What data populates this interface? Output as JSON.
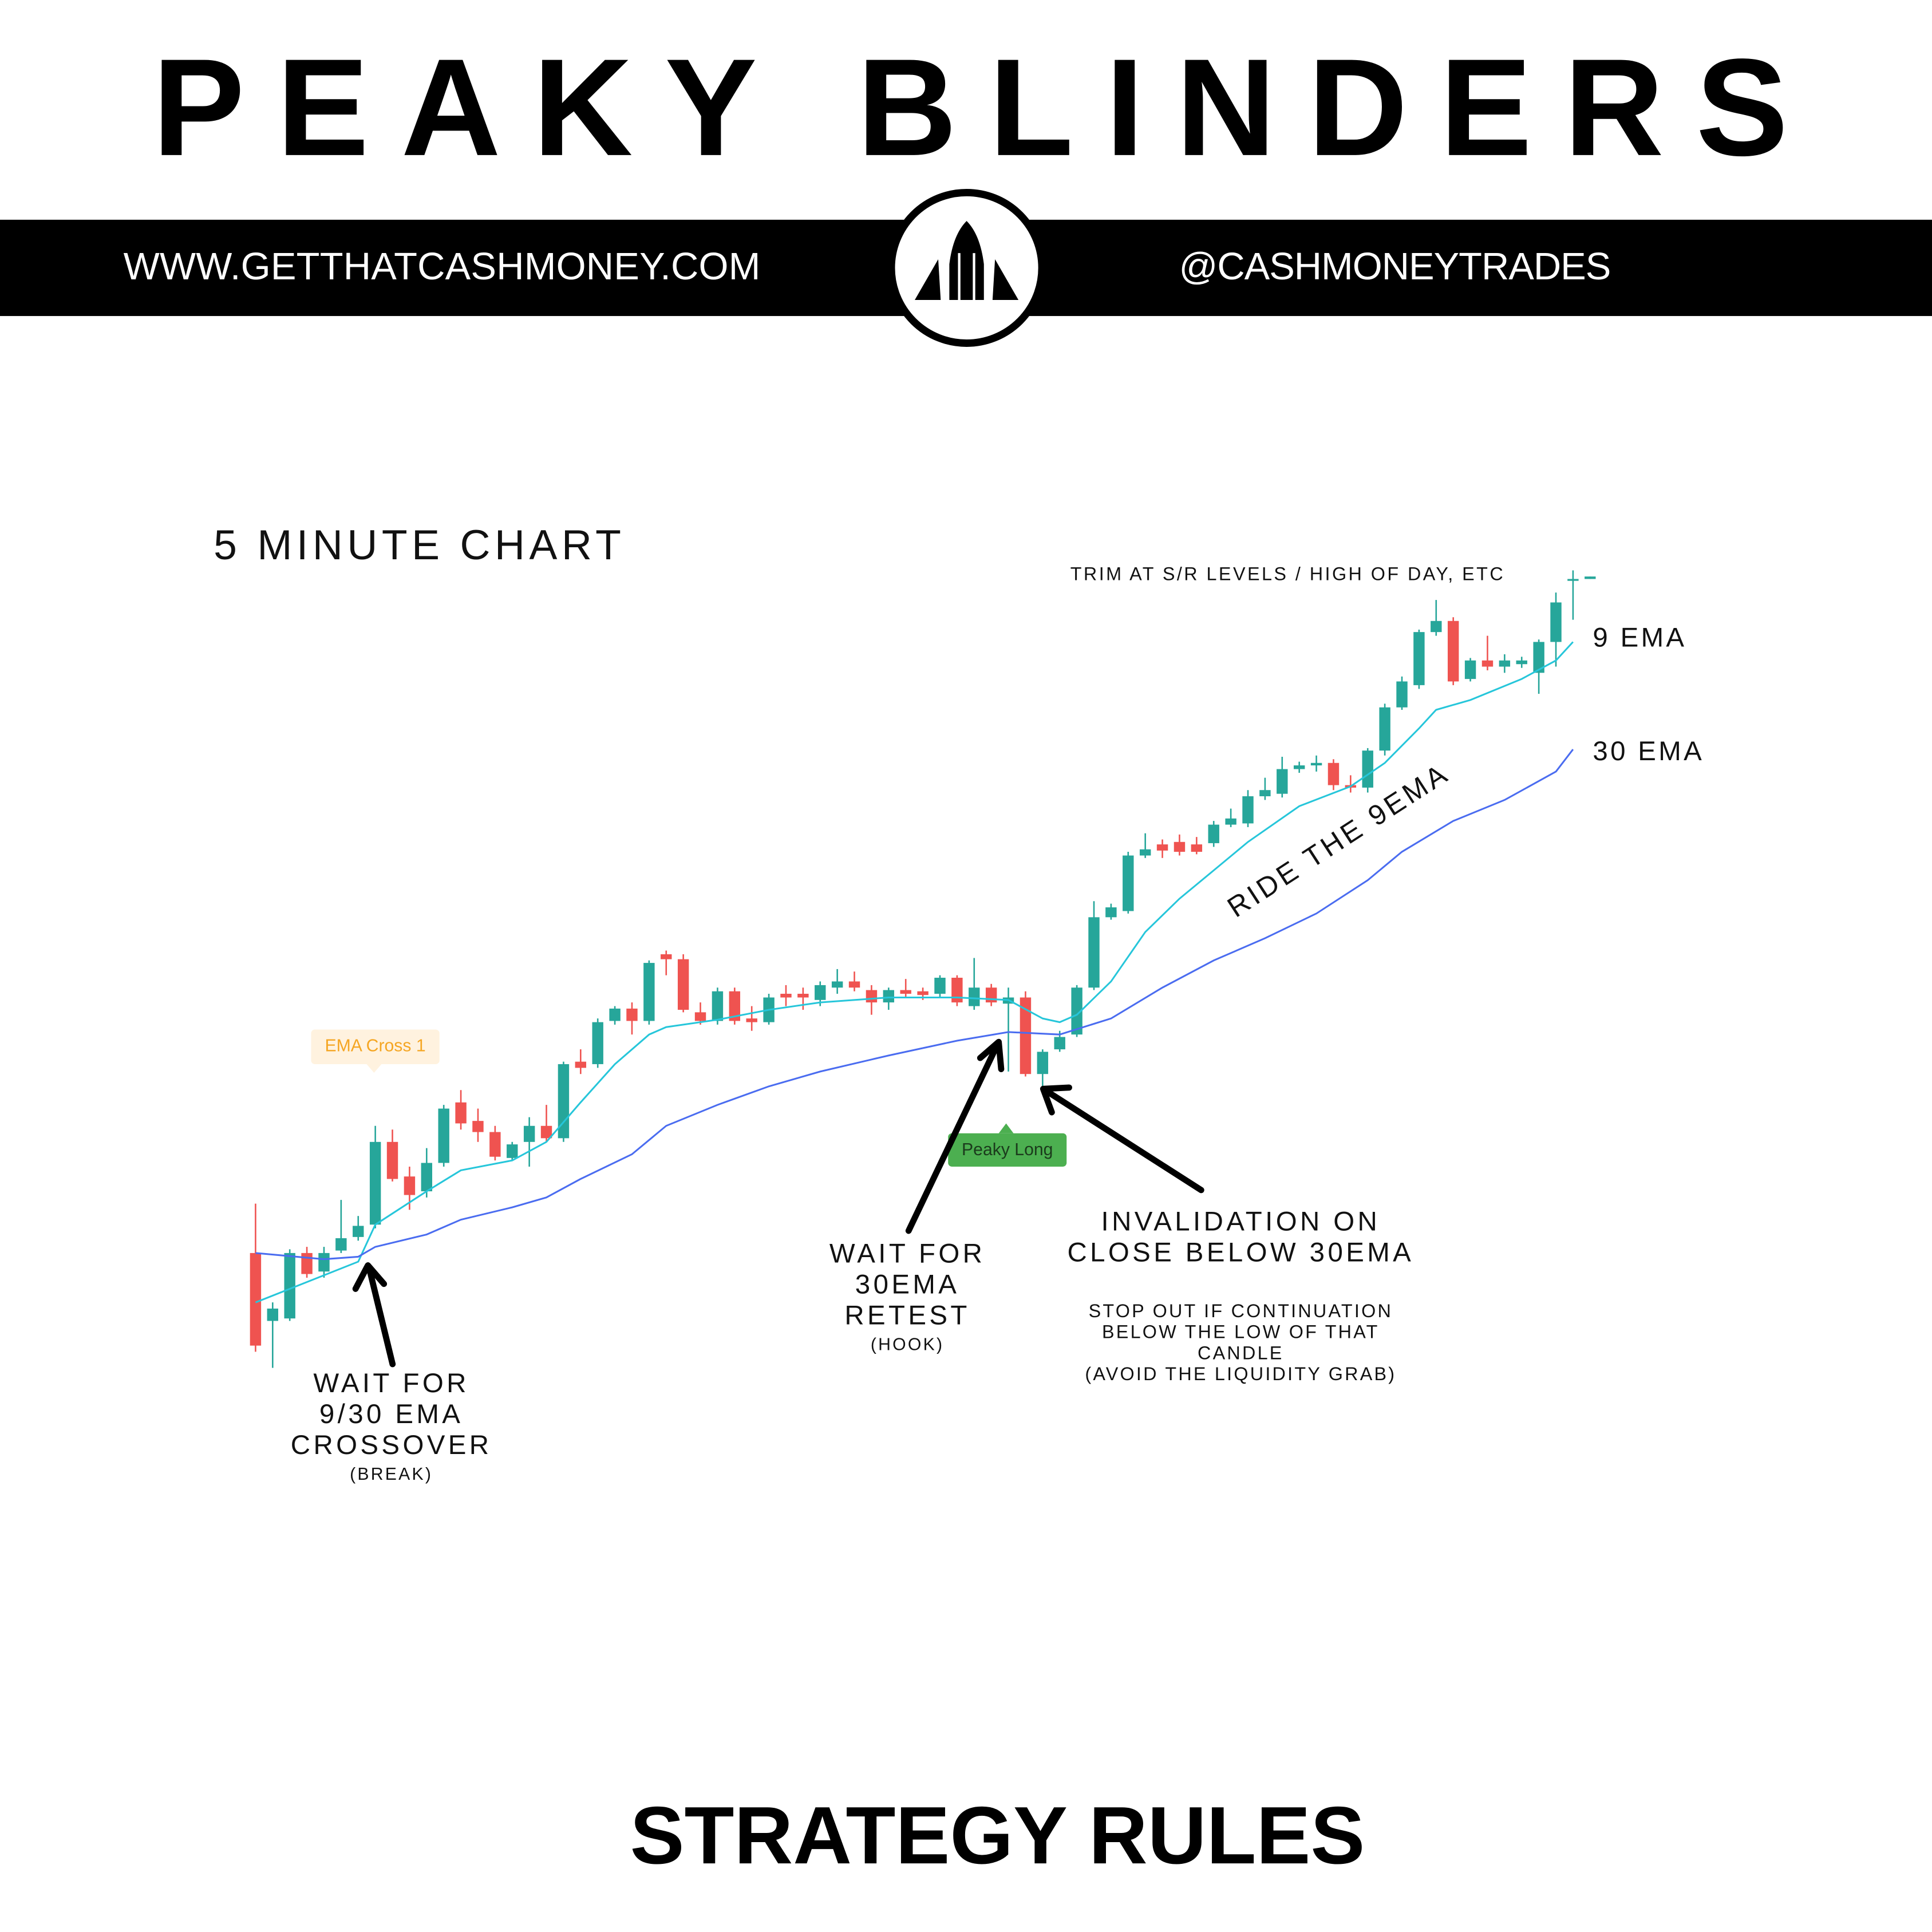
{
  "header": {
    "title": "PEAKY BLINDERS",
    "website": "WWW.GETTHATCASHMONEY.COM",
    "handle": "@CASHMONEYTRADES"
  },
  "chart_data": {
    "type": "candlestick",
    "title": "5 MINUTE CHART",
    "up_color": "#26a69a",
    "down_color": "#ef5350",
    "ylim": [
      0,
      670
    ],
    "open": [
      105,
      50,
      52,
      105,
      90,
      107,
      118,
      128,
      195,
      167,
      155,
      178,
      227,
      212,
      203,
      182,
      195,
      208,
      198,
      260,
      258,
      293,
      303,
      293,
      347,
      343,
      300,
      293,
      317,
      295,
      292,
      315,
      315,
      310,
      320,
      325,
      318,
      308,
      318,
      317,
      315,
      328,
      305,
      320,
      307,
      312,
      250,
      270,
      282,
      320,
      377,
      382,
      427,
      436,
      438,
      436,
      437,
      452,
      453,
      475,
      477,
      497,
      500,
      502,
      484,
      482,
      512,
      547,
      565,
      608,
      617,
      570,
      585,
      580,
      582,
      575,
      600,
      650,
      651
    ],
    "high": [
      145,
      65,
      108,
      110,
      110,
      148,
      135,
      208,
      205,
      175,
      190,
      225,
      237,
      222,
      208,
      195,
      215,
      225,
      260,
      270,
      295,
      305,
      308,
      342,
      350,
      347,
      308,
      320,
      320,
      305,
      315,
      322,
      320,
      325,
      335,
      333,
      322,
      320,
      327,
      320,
      330,
      330,
      344,
      323,
      320,
      317,
      270,
      285,
      322,
      390,
      388,
      430,
      445,
      440,
      444,
      442,
      455,
      465,
      480,
      490,
      507,
      503,
      508,
      505,
      492,
      514,
      550,
      572,
      610,
      634,
      620,
      587,
      605,
      590,
      588,
      602,
      640,
      658,
      653
    ],
    "low": [
      25,
      12,
      50,
      85,
      85,
      105,
      115,
      125,
      163,
      140,
      150,
      175,
      205,
      195,
      180,
      180,
      175,
      195,
      195,
      250,
      255,
      290,
      282,
      290,
      330,
      300,
      290,
      290,
      290,
      285,
      290,
      305,
      302,
      305,
      315,
      317,
      298,
      302,
      312,
      310,
      312,
      305,
      302,
      305,
      252,
      248,
      238,
      268,
      280,
      318,
      375,
      380,
      425,
      425,
      427,
      428,
      434,
      450,
      450,
      472,
      474,
      494,
      495,
      480,
      478,
      478,
      508,
      545,
      562,
      605,
      565,
      568,
      577,
      575,
      579,
      558,
      580,
      618,
      651
    ],
    "close": [
      30,
      60,
      105,
      88,
      105,
      117,
      127,
      195,
      165,
      152,
      178,
      222,
      210,
      203,
      183,
      193,
      208,
      198,
      258,
      255,
      292,
      303,
      293,
      340,
      343,
      302,
      293,
      317,
      293,
      292,
      312,
      312,
      312,
      322,
      325,
      320,
      308,
      318,
      315,
      314,
      328,
      308,
      320,
      308,
      312,
      250,
      268,
      280,
      320,
      377,
      385,
      427,
      432,
      431,
      430,
      430,
      452,
      457,
      475,
      480,
      497,
      500,
      502,
      484,
      482,
      512,
      547,
      568,
      608,
      617,
      568,
      585,
      580,
      585,
      585,
      600,
      632,
      651,
      653
    ],
    "emas": [
      {
        "name": "9 EMA",
        "color": "#26c6da",
        "x": [
          0,
          6,
          7,
          10,
          12,
          15,
          17,
          19,
          21,
          23,
          24,
          27,
          30,
          33,
          37,
          41,
          44,
          46,
          47,
          48,
          50,
          52,
          54,
          56,
          58,
          61,
          64,
          66,
          68,
          69,
          71,
          74,
          76,
          77
        ],
        "values": [
          65,
          98,
          128,
          155,
          172,
          180,
          195,
          227,
          258,
          282,
          288,
          294,
          302,
          308,
          312,
          312,
          310,
          295,
          292,
          298,
          325,
          365,
          392,
          415,
          438,
          467,
          483,
          502,
          530,
          545,
          553,
          570,
          585,
          600
        ]
      },
      {
        "name": "30 EMA",
        "color": "#4a6cf0",
        "x": [
          0,
          4,
          6,
          7,
          10,
          12,
          15,
          17,
          19,
          22,
          24,
          27,
          30,
          33,
          37,
          41,
          44,
          47,
          50,
          53,
          56,
          59,
          62,
          65,
          67,
          70,
          73,
          76,
          77
        ],
        "values": [
          105,
          100,
          102,
          110,
          120,
          132,
          142,
          150,
          165,
          185,
          208,
          225,
          240,
          252,
          265,
          277,
          284,
          282,
          295,
          320,
          342,
          360,
          380,
          407,
          430,
          455,
          472,
          495,
          513
        ]
      }
    ],
    "signals": [
      "EMA Cross 1",
      "Peaky Long"
    ]
  },
  "annotations": {
    "trim": "TRIM AT S/R LEVELS / HIGH OF DAY, ETC",
    "ride": "RIDE THE 9EMA",
    "crossover": {
      "lines": [
        "WAIT FOR",
        "9/30 EMA",
        "CROSSOVER"
      ],
      "note": "(BREAK)"
    },
    "retest": {
      "lines": [
        "WAIT FOR",
        "30EMA",
        "RETEST"
      ],
      "note": "(HOOK)"
    },
    "invalidation": {
      "lines": [
        "INVALIDATION ON",
        "CLOSE BELOW 30EMA"
      ],
      "notes": [
        "STOP OUT IF CONTINUATION",
        "BELOW THE LOW OF THAT",
        "CANDLE",
        "(AVOID THE LIQUIDITY GRAB)"
      ]
    }
  },
  "footer": {
    "title": "STRATEGY RULES"
  }
}
